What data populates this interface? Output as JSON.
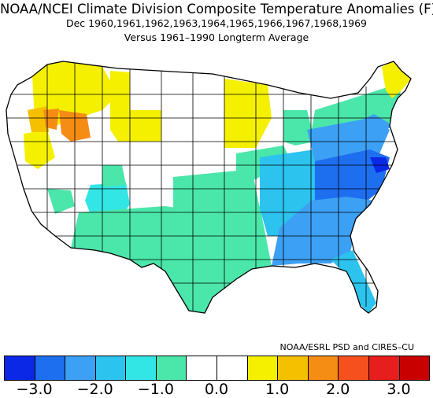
{
  "title": "NOAA/NCEI Climate Division Composite Temperature Anomalies (F)",
  "subtitle": "Dec  1960,1961,1962,1963,1964,1965,1966,1967,1968,1969",
  "subtitle2": "Versus 1961–1990 Longterm Average",
  "credit": "NOAA/ESRL PSD and CIRES–CU",
  "legend": {
    "colors": [
      "#0a28e6",
      "#1e6ef0",
      "#3ca0f5",
      "#2cc3ee",
      "#32e6e6",
      "#4be6aa",
      "#ffffff",
      "#ffffff",
      "#f5f000",
      "#f5c000",
      "#f58c14",
      "#f5501e",
      "#e61e1e",
      "#c80000"
    ],
    "ticks": [
      "−3.0",
      "−2.0",
      "−1.0",
      "0.0",
      "1.0",
      "2.0",
      "3.0"
    ]
  },
  "regions": [
    {
      "name": "pacific-northwest-coast",
      "anomaly": 0.0
    },
    {
      "name": "idaho-north-montana",
      "anomaly": 1.0
    },
    {
      "name": "southern-idaho",
      "anomaly": 1.5
    },
    {
      "name": "wyoming-north",
      "anomaly": 1.0
    },
    {
      "name": "minnesota",
      "anomaly": 1.0
    },
    {
      "name": "great-basin",
      "anomaly": 0.0
    },
    {
      "name": "plains-north",
      "anomaly": 0.0
    },
    {
      "name": "arizona-north",
      "anomaly": -1.0
    },
    {
      "name": "southwest-texas",
      "anomaly": -0.5
    },
    {
      "name": "southern-plains",
      "anomaly": -0.5
    },
    {
      "name": "midwest",
      "anomaly": -1.0
    },
    {
      "name": "ohio-valley",
      "anomaly": -1.5
    },
    {
      "name": "appalachians",
      "anomaly": -2.5
    },
    {
      "name": "southeast",
      "anomaly": -2.0
    },
    {
      "name": "florida",
      "anomaly": -1.5
    },
    {
      "name": "northeast",
      "anomaly": -1.0
    },
    {
      "name": "maine",
      "anomaly": 1.0
    }
  ]
}
